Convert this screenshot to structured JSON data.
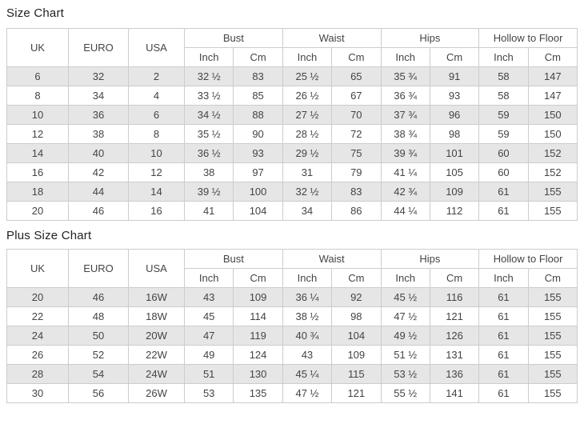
{
  "colors": {
    "stripe": "#e6e6e6",
    "border": "#cccccc",
    "text": "#444444",
    "title": "#222222"
  },
  "tables": [
    {
      "name": "size-chart-table",
      "title": "Size Chart",
      "group_headers": [
        {
          "label": "UK",
          "rowspan": 2
        },
        {
          "label": "EURO",
          "rowspan": 2
        },
        {
          "label": "USA",
          "rowspan": 2
        },
        {
          "label": "Bust",
          "colspan": 2
        },
        {
          "label": "Waist",
          "colspan": 2
        },
        {
          "label": "Hips",
          "colspan": 2
        },
        {
          "label": "Hollow to Floor",
          "colspan": 2
        }
      ],
      "sub_headers": [
        "Inch",
        "Cm",
        "Inch",
        "Cm",
        "Inch",
        "Cm",
        "Inch",
        "Cm"
      ],
      "rows": [
        [
          "6",
          "32",
          "2",
          "32 ½",
          "83",
          "25 ½",
          "65",
          "35 ¾",
          "91",
          "58",
          "147"
        ],
        [
          "8",
          "34",
          "4",
          "33 ½",
          "85",
          "26 ½",
          "67",
          "36 ¾",
          "93",
          "58",
          "147"
        ],
        [
          "10",
          "36",
          "6",
          "34 ½",
          "88",
          "27 ½",
          "70",
          "37 ¾",
          "96",
          "59",
          "150"
        ],
        [
          "12",
          "38",
          "8",
          "35 ½",
          "90",
          "28 ½",
          "72",
          "38 ¾",
          "98",
          "59",
          "150"
        ],
        [
          "14",
          "40",
          "10",
          "36 ½",
          "93",
          "29 ½",
          "75",
          "39 ¾",
          "101",
          "60",
          "152"
        ],
        [
          "16",
          "42",
          "12",
          "38",
          "97",
          "31",
          "79",
          "41 ¼",
          "105",
          "60",
          "152"
        ],
        [
          "18",
          "44",
          "14",
          "39 ½",
          "100",
          "32 ½",
          "83",
          "42 ¾",
          "109",
          "61",
          "155"
        ],
        [
          "20",
          "46",
          "16",
          "41",
          "104",
          "34",
          "86",
          "44 ¼",
          "112",
          "61",
          "155"
        ]
      ]
    },
    {
      "name": "plus-size-chart-table",
      "title": "Plus Size Chart",
      "group_headers": [
        {
          "label": "UK",
          "rowspan": 2
        },
        {
          "label": "EURO",
          "rowspan": 2
        },
        {
          "label": "USA",
          "rowspan": 2
        },
        {
          "label": "Bust",
          "colspan": 2
        },
        {
          "label": "Waist",
          "colspan": 2
        },
        {
          "label": "Hips",
          "colspan": 2
        },
        {
          "label": "Hollow to Floor",
          "colspan": 2
        }
      ],
      "sub_headers": [
        "Inch",
        "Cm",
        "Inch",
        "Cm",
        "Inch",
        "Cm",
        "Inch",
        "Cm"
      ],
      "rows": [
        [
          "20",
          "46",
          "16W",
          "43",
          "109",
          "36 ¼",
          "92",
          "45 ½",
          "116",
          "61",
          "155"
        ],
        [
          "22",
          "48",
          "18W",
          "45",
          "114",
          "38 ½",
          "98",
          "47 ½",
          "121",
          "61",
          "155"
        ],
        [
          "24",
          "50",
          "20W",
          "47",
          "119",
          "40 ¾",
          "104",
          "49 ½",
          "126",
          "61",
          "155"
        ],
        [
          "26",
          "52",
          "22W",
          "49",
          "124",
          "43",
          "109",
          "51 ½",
          "131",
          "61",
          "155"
        ],
        [
          "28",
          "54",
          "24W",
          "51",
          "130",
          "45 ¼",
          "115",
          "53 ½",
          "136",
          "61",
          "155"
        ],
        [
          "30",
          "56",
          "26W",
          "53",
          "135",
          "47 ½",
          "121",
          "55 ½",
          "141",
          "61",
          "155"
        ]
      ]
    }
  ]
}
